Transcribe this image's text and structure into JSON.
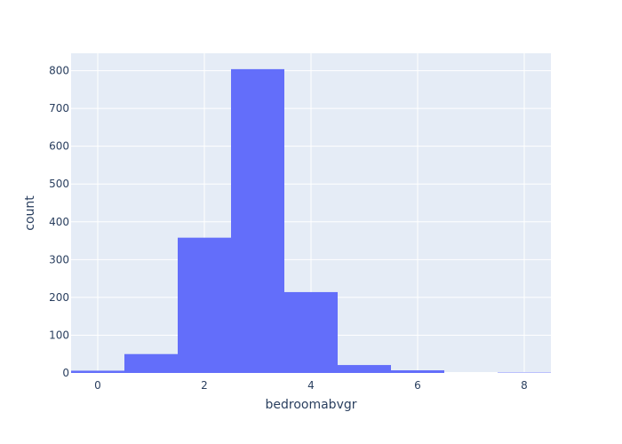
{
  "chart_data": {
    "type": "bar",
    "histogram": true,
    "x": [
      0,
      1,
      2,
      3,
      4,
      5,
      6,
      7,
      8
    ],
    "values": [
      6,
      50,
      358,
      804,
      214,
      21,
      7,
      0,
      1
    ],
    "xlabel": "bedroomabvgr",
    "ylabel": "count",
    "xlim": [
      -0.5,
      8.5
    ],
    "ylim": [
      0,
      846
    ],
    "xticks": [
      0,
      2,
      4,
      6,
      8
    ],
    "yticks": [
      0,
      100,
      200,
      300,
      400,
      500,
      600,
      700,
      800
    ],
    "grid": true
  },
  "colors": {
    "plot_background": "#e5ecf6",
    "bar": "#636efa",
    "grid": "#ffffff",
    "text": "#2a3f5f"
  }
}
